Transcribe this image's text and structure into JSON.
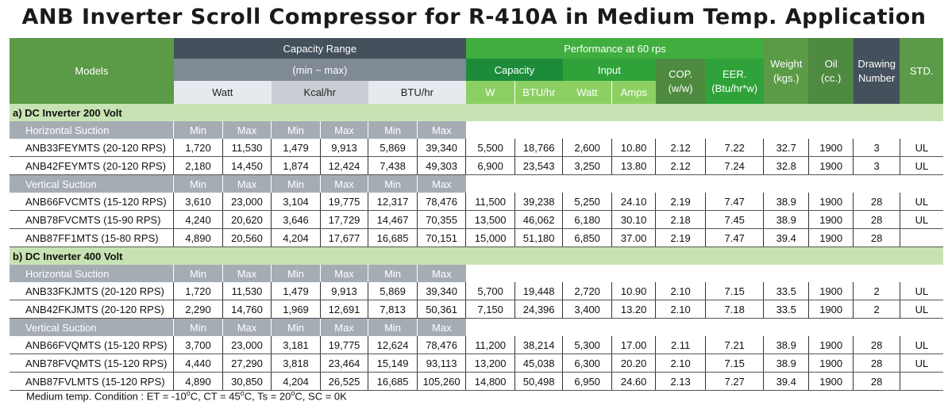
{
  "title": "ANB Inverter Scroll Compressor for R-410A in Medium Temp. Application",
  "header": {
    "models": "Models",
    "capacity_range": "Capacity Range",
    "min_max": "(min ~ max)",
    "watt": "Watt",
    "kcal": "Kcal/hr",
    "btu": "BTU/hr",
    "performance": "Performance at 60 rps",
    "capacity": "Capacity",
    "input": "Input",
    "w": "W",
    "btu_hr": "BTU/hr",
    "input_watt": "Watt",
    "amps": "Amps",
    "cop": "COP.",
    "cop_unit": "(w/w)",
    "eer": "EER.",
    "eer_unit": "(Btu/hr*w)",
    "weight": "Weight",
    "weight_unit": "(kgs.)",
    "oil": "Oil",
    "oil_unit": "(cc.)",
    "drawing": "Drawing",
    "number": "Number",
    "std": "STD."
  },
  "minmax": {
    "min": "Min",
    "max": "Max"
  },
  "sections": [
    {
      "title": "a) DC Inverter 200 Volt",
      "groups": [
        {
          "label": "Horizontal Suction",
          "rows": [
            [
              "ANB33FEYMTS (20-120 RPS)",
              "1,720",
              "11,530",
              "1,479",
              "9,913",
              "5,869",
              "39,340",
              "5,500",
              "18,766",
              "2,600",
              "10.80",
              "2.12",
              "7.22",
              "32.7",
              "1900",
              "3",
              "UL"
            ],
            [
              "ANB42FEYMTS (20-120 RPS)",
              "2,180",
              "14,450",
              "1,874",
              "12,424",
              "7,438",
              "49,303",
              "6,900",
              "23,543",
              "3,250",
              "13.80",
              "2.12",
              "7.24",
              "32.8",
              "1900",
              "3",
              "UL"
            ]
          ]
        },
        {
          "label": "Vertical Suction",
          "rows": [
            [
              "ANB66FVCMTS (15-120 RPS)",
              "3,610",
              "23,000",
              "3,104",
              "19,775",
              "12,317",
              "78,476",
              "11,500",
              "39,238",
              "5,250",
              "24.10",
              "2.19",
              "7.47",
              "38.9",
              "1900",
              "28",
              "UL"
            ],
            [
              "ANB78FVCMTS (15-90 RPS)",
              "4,240",
              "20,620",
              "3,646",
              "17,729",
              "14,467",
              "70,355",
              "13,500",
              "46,062",
              "6,180",
              "30.10",
              "2.18",
              "7.45",
              "38.9",
              "1900",
              "28",
              "UL"
            ],
            [
              "ANB87FF1MTS (15-80 RPS)",
              "4,890",
              "20,560",
              "4,204",
              "17,677",
              "16,685",
              "70,151",
              "15,000",
              "51,180",
              "6,850",
              "37.00",
              "2.19",
              "7.47",
              "39.4",
              "1900",
              "28",
              ""
            ]
          ]
        }
      ]
    },
    {
      "title": "b) DC Inverter 400 Volt",
      "groups": [
        {
          "label": "Horizontal Suction",
          "rows": [
            [
              "ANB33FKJMTS (20-120 RPS)",
              "1,720",
              "11,530",
              "1,479",
              "9,913",
              "5,869",
              "39,340",
              "5,700",
              "19,448",
              "2,720",
              "10.90",
              "2.10",
              "7.15",
              "33.5",
              "1900",
              "2",
              "UL"
            ],
            [
              "ANB42FKJMTS (20-120 RPS)",
              "2,290",
              "14,760",
              "1,969",
              "12,691",
              "7,813",
              "50,361",
              "7,150",
              "24,396",
              "3,400",
              "13.20",
              "2.10",
              "7.18",
              "33.5",
              "1900",
              "2",
              "UL"
            ]
          ]
        },
        {
          "label": "Vertical Suction",
          "rows": [
            [
              "ANB66FVQMTS (15-120 RPS)",
              "3,700",
              "23,000",
              "3,181",
              "19,775",
              "12,624",
              "78,476",
              "11,200",
              "38,214",
              "5,300",
              "17.00",
              "2.11",
              "7.21",
              "38.9",
              "1900",
              "28",
              "UL"
            ],
            [
              "ANB78FVQMTS (15-120 RPS)",
              "4,440",
              "27,290",
              "3,818",
              "23,464",
              "15,149",
              "93,113",
              "13,200",
              "45,038",
              "6,300",
              "20.20",
              "2.10",
              "7.15",
              "38.9",
              "1900",
              "28",
              "UL"
            ],
            [
              "ANB87FVLMTS (15-120 RPS)",
              "4,890",
              "30,850",
              "4,204",
              "26,525",
              "16,685",
              "105,260",
              "14,800",
              "50,498",
              "6,950",
              "24.60",
              "2.13",
              "7.27",
              "39.4",
              "1900",
              "28",
              ""
            ]
          ]
        }
      ]
    }
  ],
  "note": {
    "prefix": "Medium temp. Condition :  ET = -10",
    "ct": ",  CT = 45",
    "ts": ",  Ts = 20",
    "sc": ",  SC = 0K",
    "deg": "o",
    "c": "C"
  }
}
